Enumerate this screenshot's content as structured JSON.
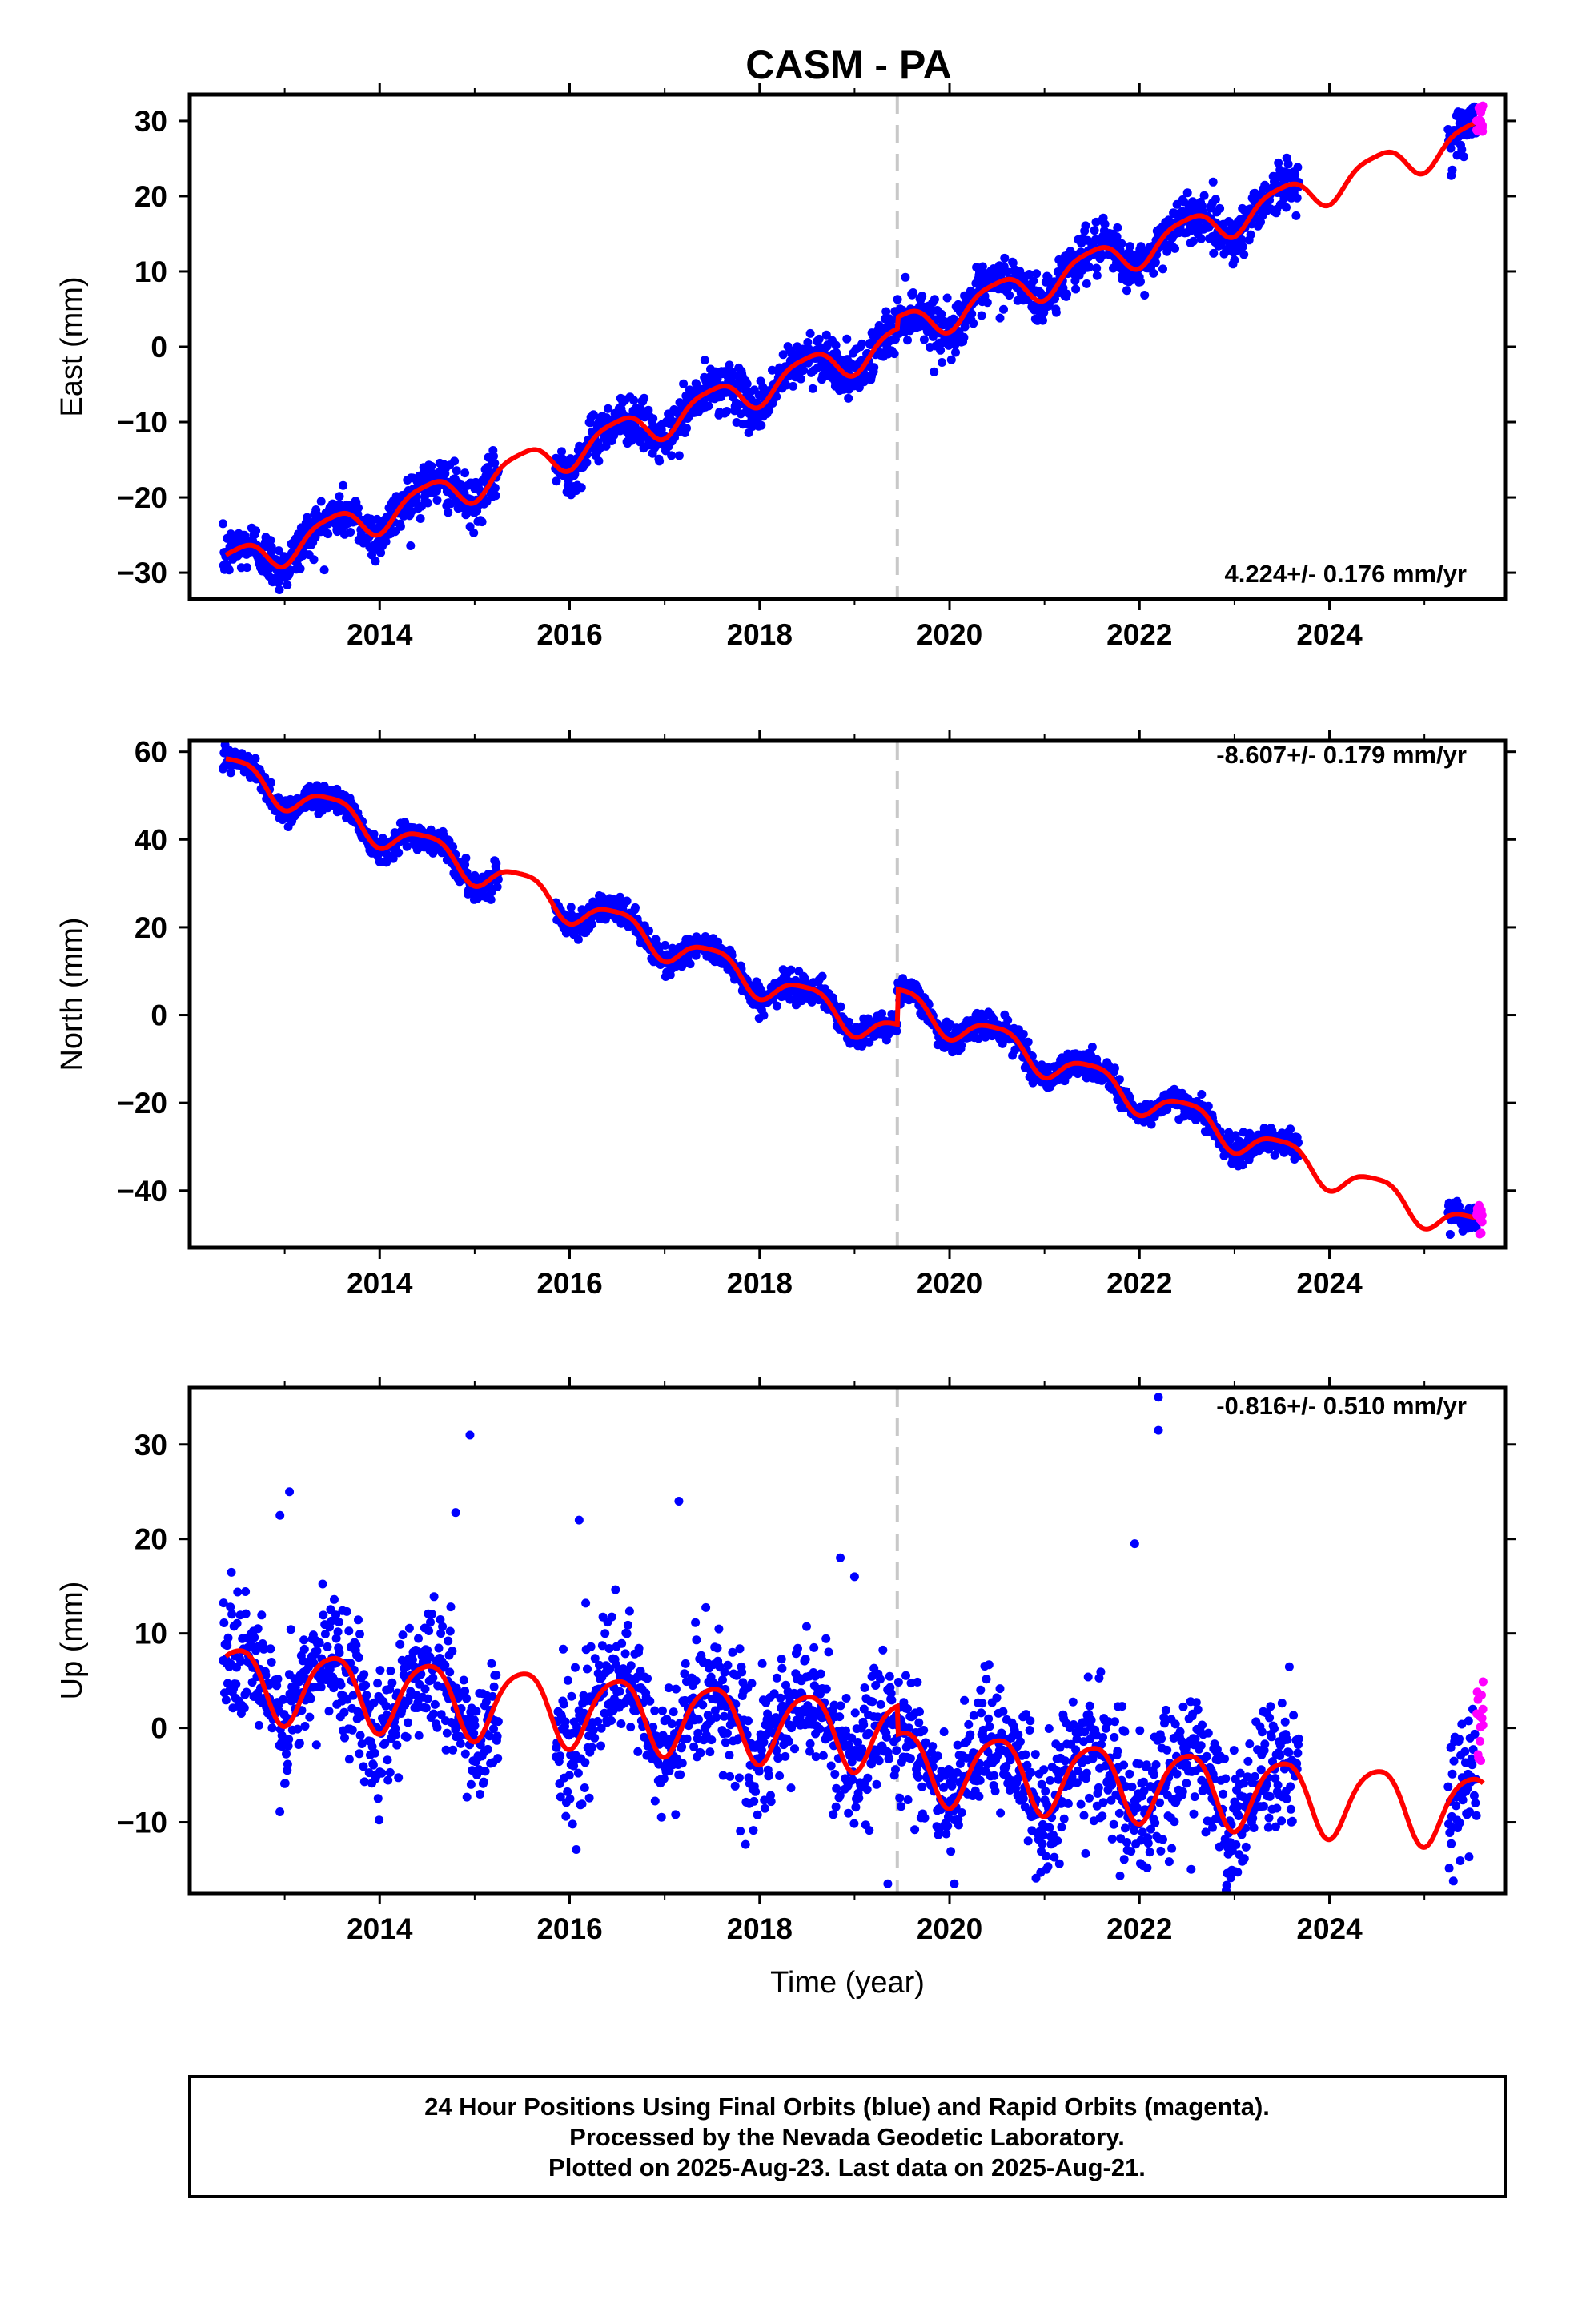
{
  "title": "CASM - PA",
  "footer": {
    "lines": [
      "24 Hour Positions Using Final Orbits (blue) and Rapid Orbits (magenta).",
      "Processed by the Nevada Geodetic Laboratory.",
      "Plotted on 2025-Aug-23. Last data on 2025-Aug-21."
    ]
  },
  "colors": {
    "final_orbits": "#0000ff",
    "rapid_orbits": "#ff00ff",
    "model_fit": "#ff0000",
    "event_line": "#c8c8c8",
    "frame": "#000000"
  },
  "chart_data": [
    {
      "type": "scatter",
      "component": "east",
      "ylabel": "East (mm)",
      "xlabel": "",
      "rate": "4.224+/- 0.176 mm/yr",
      "xlim": [
        2012.0,
        2025.85
      ],
      "ylim": [
        -33.5,
        33.5
      ],
      "x_ticks": [
        "2014",
        "2016",
        "2018",
        "2020",
        "2022",
        "2024"
      ],
      "y_ticks": [
        "30",
        "20",
        "10",
        "0",
        "−10",
        "−20",
        "−30"
      ],
      "y_tick_values": [
        30,
        20,
        10,
        0,
        -10,
        -20,
        -30
      ],
      "event_line_x": 2019.45,
      "data_segments": [
        [
          2012.35,
          2015.25
        ],
        [
          2015.85,
          2023.68
        ],
        [
          2025.25,
          2025.62
        ]
      ],
      "trend_mm": {
        "t0": 2012.4,
        "v0": -29.0,
        "rate": 4.224
      },
      "annual_amp_mm": 2.2,
      "semiannual_amp_mm": 0.5,
      "scatter_mm": 1.6,
      "offsets": [
        {
          "x": 2019.45,
          "dy": 1.5
        }
      ],
      "rapid_orbits": {
        "x_range": [
          2025.55,
          2025.62
        ],
        "y_range": [
          27,
          32
        ]
      },
      "annotation_position": "bottom-right"
    },
    {
      "type": "scatter",
      "component": "north",
      "ylabel": "North (mm)",
      "xlabel": "",
      "rate": "-8.607+/- 0.179 mm/yr",
      "xlim": [
        2012.0,
        2025.85
      ],
      "ylim": [
        -53.0,
        62.5
      ],
      "x_ticks": [
        "2014",
        "2016",
        "2018",
        "2020",
        "2022",
        "2024"
      ],
      "y_ticks": [
        "60",
        "40",
        "20",
        "0",
        "−20",
        "−40"
      ],
      "y_tick_values": [
        60,
        40,
        20,
        0,
        -20,
        -40
      ],
      "event_line_x": 2019.45,
      "data_segments": [
        [
          2012.35,
          2015.25
        ],
        [
          2015.85,
          2023.68
        ],
        [
          2025.25,
          2025.62
        ]
      ],
      "trend_mm": {
        "t0": 2012.4,
        "v0": 56.0,
        "rate": -8.607
      },
      "annual_amp_mm": 3.5,
      "semiannual_amp_mm": 0.8,
      "scatter_mm": 1.5,
      "offsets": [
        {
          "x": 2019.45,
          "dy": 8.0
        }
      ],
      "rapid_orbits": {
        "x_range": [
          2025.55,
          2025.62
        ],
        "y_range": [
          -50,
          -43
        ]
      },
      "annotation_position": "top-right"
    },
    {
      "type": "scatter",
      "component": "up",
      "ylabel": "Up (mm)",
      "xlabel": "Time (year)",
      "rate": "-0.816+/- 0.510 mm/yr",
      "xlim": [
        2012.0,
        2025.85
      ],
      "ylim": [
        -17.5,
        36.0
      ],
      "x_ticks": [
        "2014",
        "2016",
        "2018",
        "2020",
        "2022",
        "2024"
      ],
      "y_ticks": [
        "30",
        "20",
        "10",
        "0",
        "−10"
      ],
      "y_tick_values": [
        30,
        20,
        10,
        0,
        -10
      ],
      "event_line_x": 2019.45,
      "data_segments": [
        [
          2012.35,
          2015.25
        ],
        [
          2015.85,
          2023.68
        ],
        [
          2025.25,
          2025.62
        ]
      ],
      "trend_mm": {
        "t0": 2012.4,
        "v0": 5.0,
        "rate": -0.816
      },
      "annual_amp_mm": 3.8,
      "semiannual_amp_mm": 0.6,
      "scatter_mm": 3.5,
      "offsets": [
        {
          "x": 2019.45,
          "dy": -3.0
        }
      ],
      "rapid_orbits": {
        "x_range": [
          2025.55,
          2025.62
        ],
        "y_range": [
          -4,
          5
        ]
      },
      "outliers": [
        [
          2022.2,
          35
        ],
        [
          2022.2,
          31.5
        ],
        [
          2014.95,
          31
        ],
        [
          2013.05,
          25
        ],
        [
          2017.15,
          24
        ],
        [
          2014.8,
          22.8
        ],
        [
          2021.95,
          19.5
        ],
        [
          2016.1,
          22
        ],
        [
          2018.85,
          18
        ],
        [
          2019.0,
          16
        ],
        [
          2012.95,
          22.5
        ],
        [
          2019.35,
          -16.5
        ],
        [
          2020.05,
          -16.5
        ]
      ],
      "annotation_position": "top-right"
    }
  ]
}
